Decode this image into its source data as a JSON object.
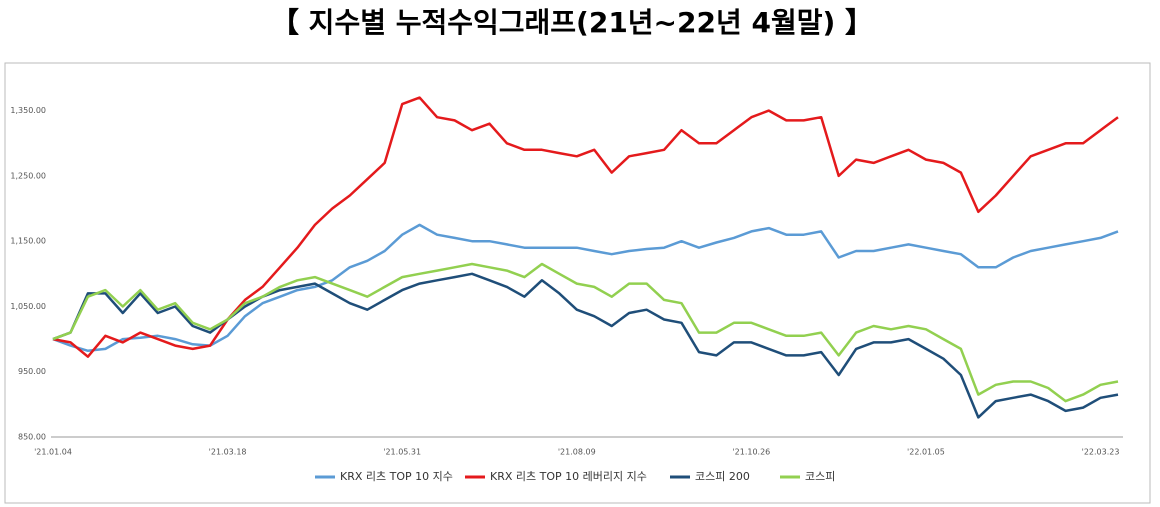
{
  "chart_data": {
    "type": "line",
    "title": "【  지수별  누적수익그래프(21년~22년 4월말)  】",
    "categories": [
      "'21.01.04",
      null,
      null,
      null,
      null,
      null,
      null,
      null,
      null,
      null,
      "'21.03.18",
      null,
      null,
      null,
      null,
      null,
      null,
      null,
      null,
      null,
      "'21.05.31",
      null,
      null,
      null,
      null,
      null,
      null,
      null,
      null,
      null,
      "'21.08.09",
      null,
      null,
      null,
      null,
      null,
      null,
      null,
      null,
      null,
      "'21.10.26",
      null,
      null,
      null,
      null,
      null,
      null,
      null,
      null,
      null,
      "'22.01.05",
      null,
      null,
      null,
      null,
      null,
      null,
      null,
      null,
      null,
      "'22.03.23",
      null
    ],
    "series": [
      {
        "name": "KRX 리츠 TOP 10 지수",
        "color": "#5b9bd5",
        "values": [
          1000,
          990,
          982,
          985,
          1000,
          1002,
          1005,
          1000,
          992,
          990,
          1005,
          1035,
          1055,
          1065,
          1075,
          1080,
          1090,
          1110,
          1120,
          1135,
          1160,
          1175,
          1160,
          1155,
          1150,
          1150,
          1145,
          1140,
          1140,
          1140,
          1140,
          1135,
          1130,
          1135,
          1138,
          1140,
          1150,
          1140,
          1148,
          1155,
          1165,
          1170,
          1160,
          1160,
          1165,
          1125,
          1135,
          1135,
          1140,
          1145,
          1140,
          1135,
          1130,
          1110,
          1110,
          1125,
          1135,
          1140,
          1145,
          1150,
          1155,
          1165
        ]
      },
      {
        "name": "KRX 리츠 TOP 10 레버리지 지수",
        "color": "#e41a1c",
        "values": [
          1000,
          995,
          973,
          1005,
          995,
          1010,
          1000,
          990,
          985,
          990,
          1030,
          1060,
          1080,
          1110,
          1140,
          1175,
          1200,
          1220,
          1245,
          1270,
          1360,
          1370,
          1340,
          1335,
          1320,
          1330,
          1300,
          1290,
          1290,
          1285,
          1280,
          1290,
          1255,
          1280,
          1285,
          1290,
          1320,
          1300,
          1300,
          1320,
          1340,
          1350,
          1335,
          1335,
          1340,
          1250,
          1275,
          1270,
          1280,
          1290,
          1275,
          1270,
          1255,
          1195,
          1220,
          1250,
          1280,
          1290,
          1300,
          1300,
          1320,
          1340
        ]
      },
      {
        "name": "코스피 200",
        "color": "#1f4e79",
        "values": [
          1000,
          1010,
          1070,
          1070,
          1040,
          1070,
          1040,
          1050,
          1020,
          1010,
          1030,
          1050,
          1065,
          1075,
          1080,
          1085,
          1070,
          1055,
          1045,
          1060,
          1075,
          1085,
          1090,
          1095,
          1100,
          1090,
          1080,
          1065,
          1090,
          1070,
          1045,
          1035,
          1020,
          1040,
          1045,
          1030,
          1025,
          980,
          975,
          995,
          995,
          985,
          975,
          975,
          980,
          945,
          985,
          995,
          995,
          1000,
          985,
          970,
          945,
          880,
          905,
          910,
          915,
          905,
          890,
          895,
          910,
          915
        ]
      },
      {
        "name": "코스피",
        "color": "#92d050",
        "values": [
          1000,
          1010,
          1065,
          1075,
          1050,
          1075,
          1045,
          1055,
          1025,
          1015,
          1030,
          1055,
          1065,
          1080,
          1090,
          1095,
          1085,
          1075,
          1065,
          1080,
          1095,
          1100,
          1105,
          1110,
          1115,
          1110,
          1105,
          1095,
          1115,
          1100,
          1085,
          1080,
          1065,
          1085,
          1085,
          1060,
          1055,
          1010,
          1010,
          1025,
          1025,
          1015,
          1005,
          1005,
          1010,
          975,
          1010,
          1020,
          1015,
          1020,
          1015,
          1000,
          985,
          915,
          930,
          935,
          935,
          925,
          905,
          915,
          930,
          935
        ]
      }
    ],
    "ylim": [
      850,
      1400
    ],
    "yticks": [
      {
        "value": 850,
        "label": "850.00"
      },
      {
        "value": 950,
        "label": "950.00"
      },
      {
        "value": 1050,
        "label": "1,050.00"
      },
      {
        "value": 1150,
        "label": "1,150.00"
      },
      {
        "value": 1250,
        "label": "1,250.00"
      },
      {
        "value": 1350,
        "label": "1,350.00"
      }
    ],
    "grid": false,
    "legend": "bottom"
  }
}
